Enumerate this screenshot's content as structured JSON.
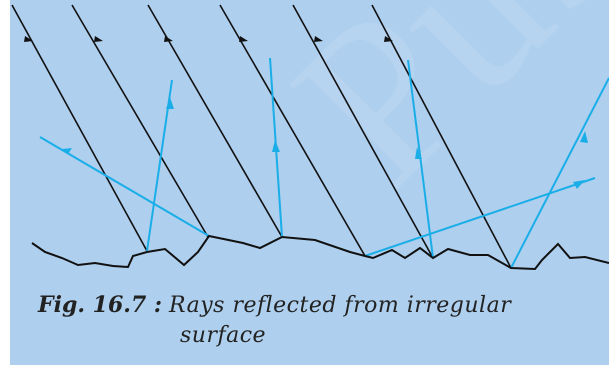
{
  "figure": {
    "label": "Fig. 16.7 :",
    "caption_line1": "Rays reflected from irregular",
    "caption_line2": "surface"
  },
  "watermark_text": "Published",
  "colors": {
    "background": "#aecfee",
    "incident_ray": "#111111",
    "reflected_ray": "#1aaee8",
    "surface": "#111111"
  },
  "icons": {
    "incident_arrow": "arrow-down-right-icon",
    "reflected_arrow": "arrow-head-icon"
  }
}
